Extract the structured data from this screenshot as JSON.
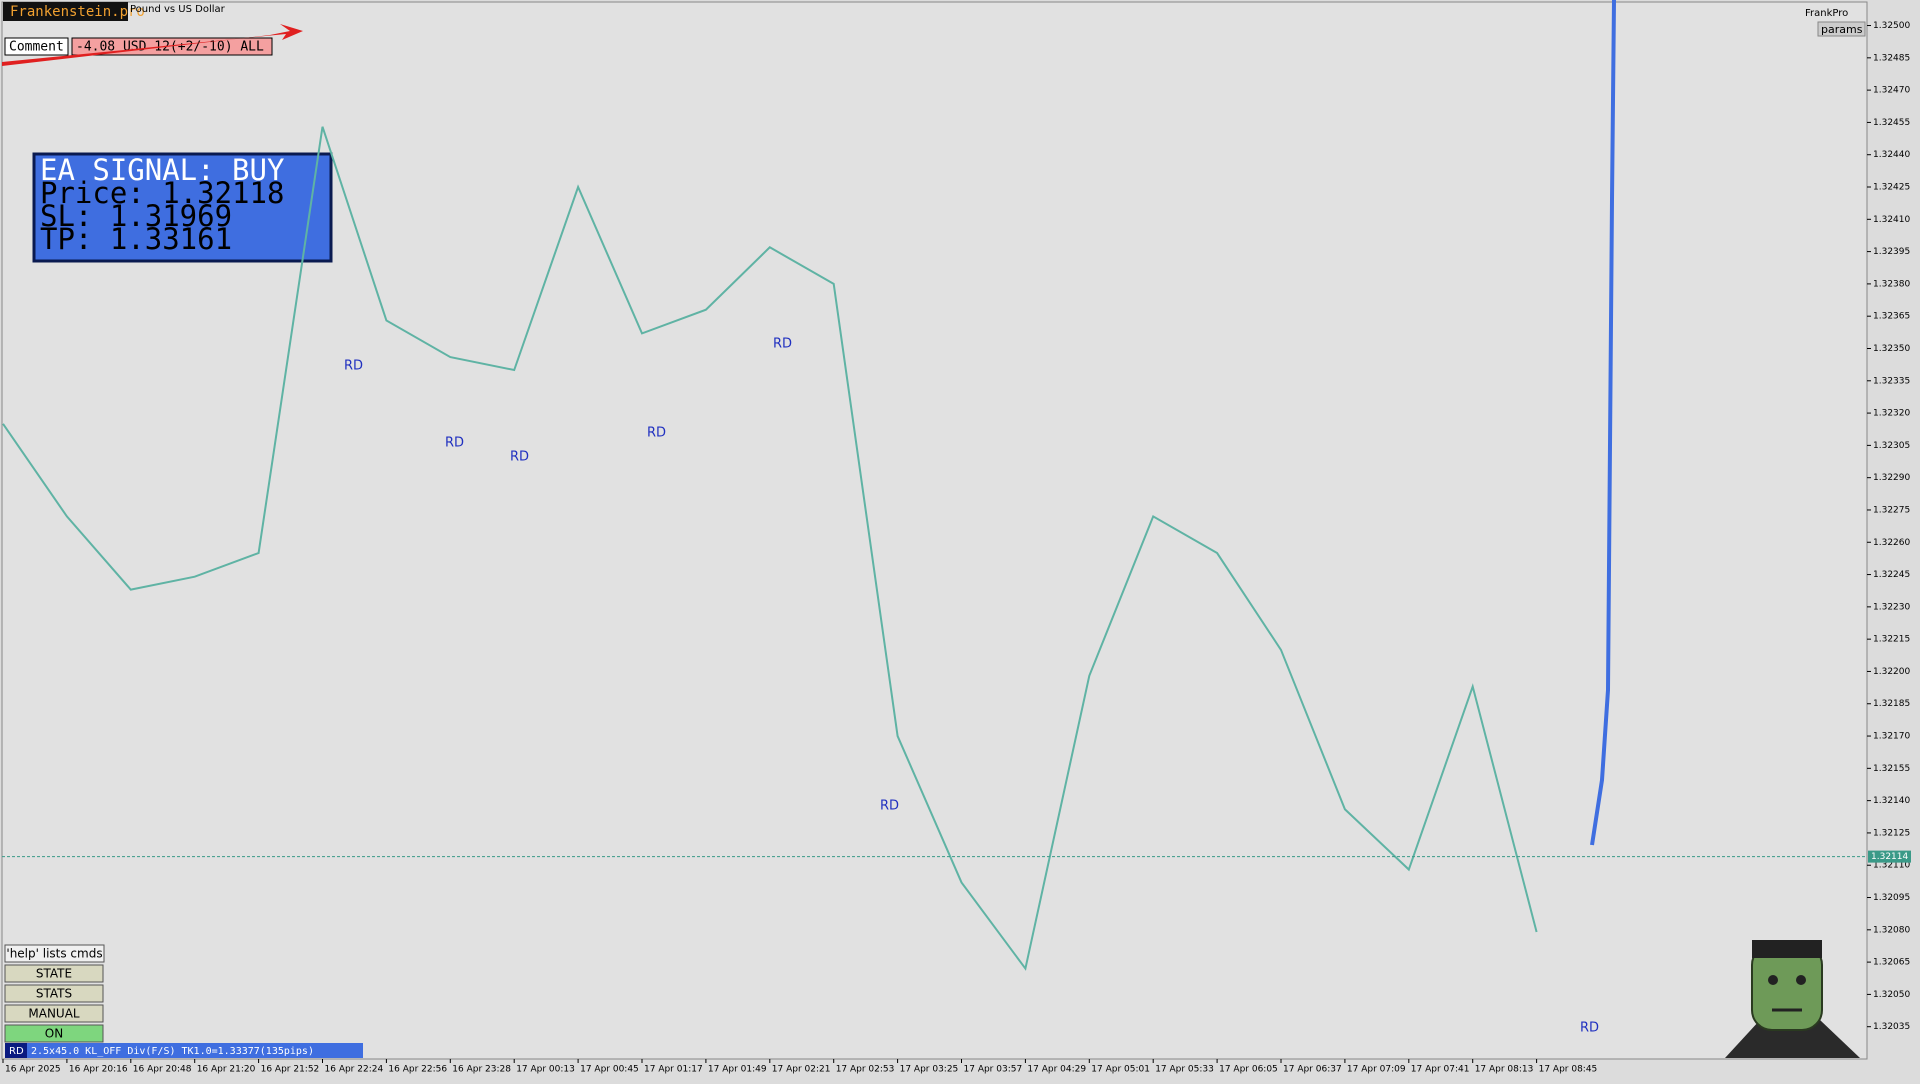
{
  "header": {
    "brand": "Frankenstein.pro",
    "symbol": "Pound vs US Dollar",
    "comment_label": "Comment",
    "comment": "-4.08 USD 12(+2/-10) ALL",
    "corner": "FrankPro",
    "params": "params"
  },
  "signal": {
    "line1": "EA SIGNAL: BUY",
    "line2": "Price: 1.32118",
    "line3": "SL:     1.31969",
    "line4": "TP:     1.33161"
  },
  "buttons": [
    "'help' lists cmds",
    "STATE",
    "STATS",
    "MANUAL",
    "ON"
  ],
  "status": {
    "tag": "RD",
    "text": "2.5x45.0 KL_OFF Div(F/S) TK1.0=1.33377(135pips)"
  },
  "annotations": [
    "RD",
    "RD",
    "RD",
    "RD",
    "RD",
    "RD",
    "RD"
  ],
  "chart_data": {
    "type": "line",
    "color": "#5fb3a4",
    "categories": [
      "16 Apr 2025",
      "16 Apr 20:16",
      "16 Apr 20:48",
      "16 Apr 21:20",
      "16 Apr 21:52",
      "16 Apr 22:24",
      "16 Apr 22:56",
      "16 Apr 23:28",
      "17 Apr 00:13",
      "17 Apr 00:45",
      "17 Apr 01:17",
      "17 Apr 01:49",
      "17 Apr 02:21",
      "17 Apr 02:53",
      "17 Apr 03:25",
      "17 Apr 03:57",
      "17 Apr 04:29",
      "17 Apr 05:01",
      "17 Apr 05:33",
      "17 Apr 06:05",
      "17 Apr 06:37",
      "17 Apr 07:09",
      "17 Apr 07:41",
      "17 Apr 08:13",
      "17 Apr 08:45"
    ],
    "values": [
      1.32315,
      1.32272,
      1.32238,
      1.32244,
      1.32255,
      1.32453,
      1.32363,
      1.32346,
      1.3234,
      1.32425,
      1.32357,
      1.32368,
      1.32397,
      1.3238,
      1.3217,
      1.32102,
      1.32062,
      1.32198,
      1.32272,
      1.32255,
      1.3221,
      1.32136,
      1.32108,
      1.32193,
      1.32079
    ],
    "current_price": {
      "value": 1.32114,
      "label": "1.32114"
    },
    "ylim": [
      1.3202,
      1.3251
    ],
    "yticks": [
      {
        "value": 1.32035,
        "label": "1.32035"
      },
      {
        "value": 1.3205,
        "label": "1.32050"
      },
      {
        "value": 1.32065,
        "label": "1.32065"
      },
      {
        "value": 1.3208,
        "label": "1.32080"
      },
      {
        "value": 1.32095,
        "label": "1.32095"
      },
      {
        "value": 1.3211,
        "label": "1.32110"
      },
      {
        "value": 1.32125,
        "label": "1.32125"
      },
      {
        "value": 1.3214,
        "label": "1.32140"
      },
      {
        "value": 1.32155,
        "label": "1.32155"
      },
      {
        "value": 1.3217,
        "label": "1.32170"
      },
      {
        "value": 1.32185,
        "label": "1.32185"
      },
      {
        "value": 1.322,
        "label": "1.32200"
      },
      {
        "value": 1.32215,
        "label": "1.32215"
      },
      {
        "value": 1.3223,
        "label": "1.32230"
      },
      {
        "value": 1.32245,
        "label": "1.32245"
      },
      {
        "value": 1.3226,
        "label": "1.32260"
      },
      {
        "value": 1.32275,
        "label": "1.32275"
      },
      {
        "value": 1.3229,
        "label": "1.32290"
      },
      {
        "value": 1.32305,
        "label": "1.32305"
      },
      {
        "value": 1.3232,
        "label": "1.32320"
      },
      {
        "value": 1.32335,
        "label": "1.32335"
      },
      {
        "value": 1.3235,
        "label": "1.32350"
      },
      {
        "value": 1.32365,
        "label": "1.32365"
      },
      {
        "value": 1.3238,
        "label": "1.32380"
      },
      {
        "value": 1.32395,
        "label": "1.32395"
      },
      {
        "value": 1.3241,
        "label": "1.32410"
      },
      {
        "value": 1.32425,
        "label": "1.32425"
      },
      {
        "value": 1.3244,
        "label": "1.32440"
      },
      {
        "value": 1.32455,
        "label": "1.32455"
      },
      {
        "value": 1.3247,
        "label": "1.32470"
      },
      {
        "value": 1.32485,
        "label": "1.32485"
      },
      {
        "value": 1.325,
        "label": "1.32500"
      }
    ]
  }
}
